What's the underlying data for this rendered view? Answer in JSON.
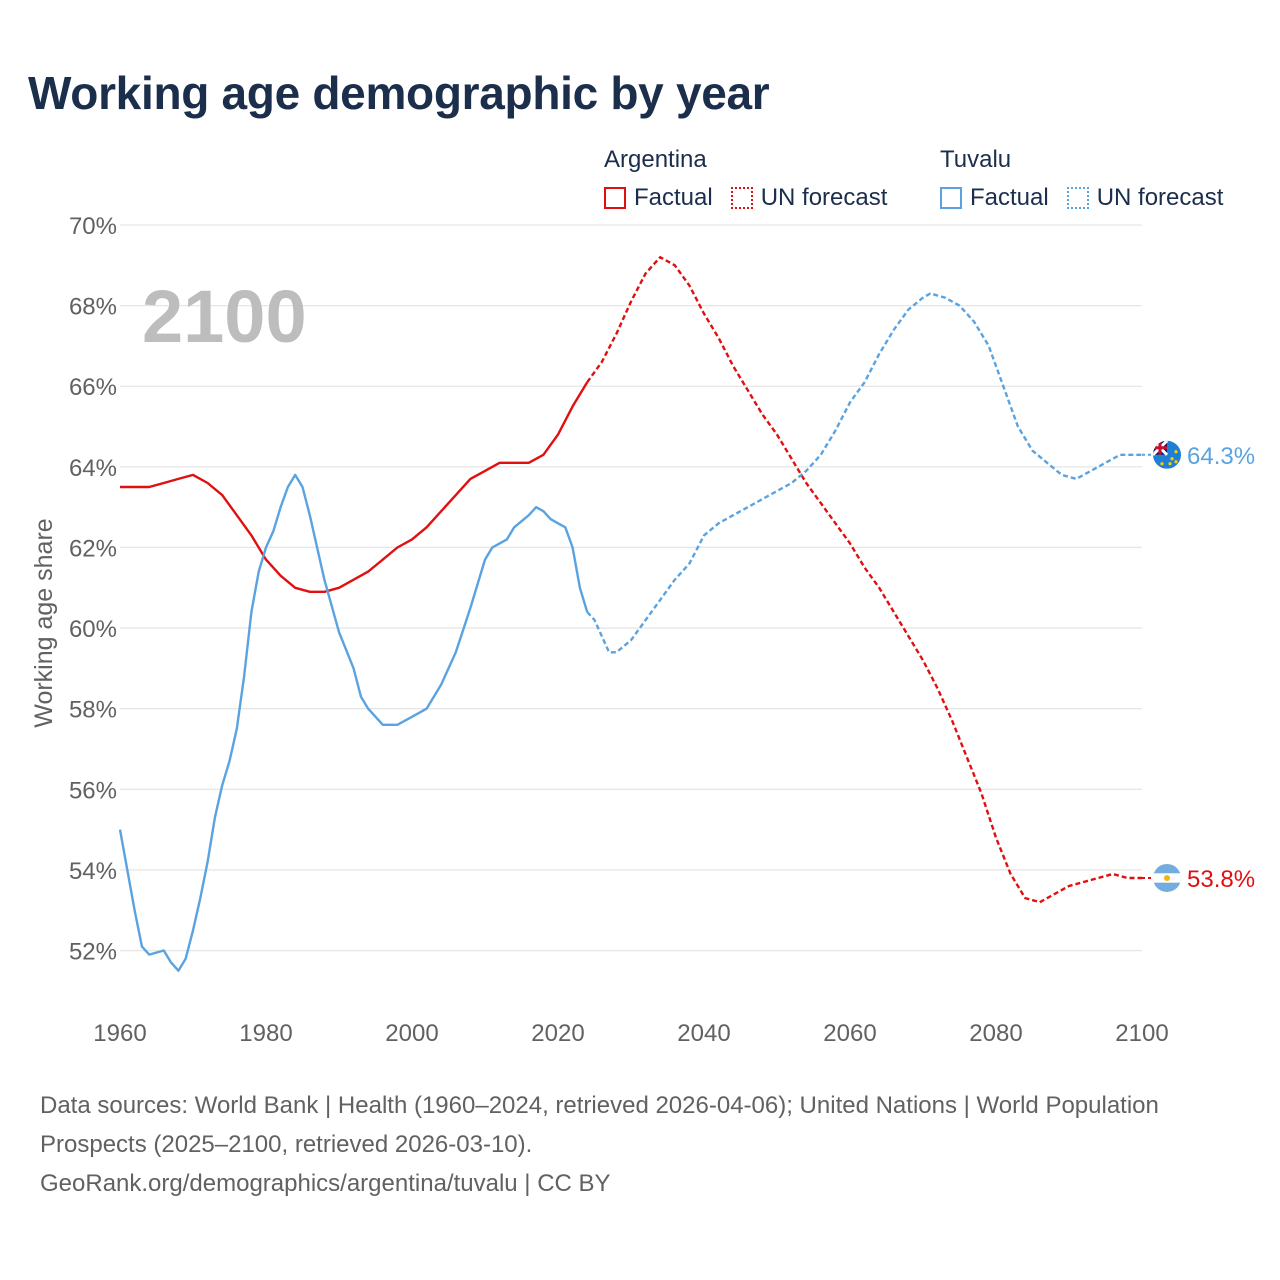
{
  "title": "Working age demographic by year",
  "legend": [
    {
      "group": "Argentina",
      "factual_label": "Factual",
      "forecast_label": "UN forecast",
      "color": "#e01010"
    },
    {
      "group": "Tuvalu",
      "factual_label": "Factual",
      "forecast_label": "UN forecast",
      "color": "#5aa3e0"
    }
  ],
  "year_watermark": "2100",
  "footer": {
    "sources": "Data sources: World Bank | Health (1960–2024, retrieved 2026-04-06); United Nations | World Population Prospects (2025–2100, retrieved 2026-03-10).",
    "credit": "GeoRank.org/demographics/argentina/tuvalu | CC BY"
  },
  "chart_data": {
    "type": "line",
    "title": "Working age demographic by year",
    "xlabel": "",
    "ylabel": "Working age share",
    "xlim": [
      1960,
      2100
    ],
    "ylim": [
      50.5,
      70
    ],
    "x_ticks": [
      1960,
      1980,
      2000,
      2020,
      2040,
      2060,
      2080,
      2100
    ],
    "x_tick_labels": [
      "1960",
      "1980",
      "2000",
      "2020",
      "2040",
      "2060",
      "2080",
      "2100"
    ],
    "y_ticks": [
      52,
      54,
      56,
      58,
      60,
      62,
      64,
      66,
      68,
      70
    ],
    "y_tick_labels": [
      "52%",
      "54%",
      "56%",
      "58%",
      "60%",
      "62%",
      "64%",
      "66%",
      "68%",
      "70%"
    ],
    "grid": true,
    "factual_end_year": 2024,
    "series": [
      {
        "name": "Argentina",
        "color": "#e01010",
        "end_label": "53.8%",
        "flag": "argentina-flag",
        "points": [
          [
            1960,
            63.5
          ],
          [
            1964,
            63.5
          ],
          [
            1966,
            63.6
          ],
          [
            1968,
            63.7
          ],
          [
            1970,
            63.8
          ],
          [
            1972,
            63.6
          ],
          [
            1974,
            63.3
          ],
          [
            1976,
            62.8
          ],
          [
            1978,
            62.3
          ],
          [
            1980,
            61.7
          ],
          [
            1982,
            61.3
          ],
          [
            1984,
            61.0
          ],
          [
            1986,
            60.9
          ],
          [
            1988,
            60.9
          ],
          [
            1990,
            61.0
          ],
          [
            1992,
            61.2
          ],
          [
            1994,
            61.4
          ],
          [
            1996,
            61.7
          ],
          [
            1998,
            62.0
          ],
          [
            2000,
            62.2
          ],
          [
            2002,
            62.5
          ],
          [
            2004,
            62.9
          ],
          [
            2006,
            63.3
          ],
          [
            2008,
            63.7
          ],
          [
            2010,
            63.9
          ],
          [
            2012,
            64.1
          ],
          [
            2014,
            64.1
          ],
          [
            2016,
            64.1
          ],
          [
            2018,
            64.3
          ],
          [
            2020,
            64.8
          ],
          [
            2022,
            65.5
          ],
          [
            2024,
            66.1
          ],
          [
            2026,
            66.6
          ],
          [
            2028,
            67.3
          ],
          [
            2030,
            68.1
          ],
          [
            2032,
            68.8
          ],
          [
            2034,
            69.2
          ],
          [
            2036,
            69.0
          ],
          [
            2038,
            68.5
          ],
          [
            2040,
            67.8
          ],
          [
            2042,
            67.2
          ],
          [
            2044,
            66.5
          ],
          [
            2046,
            65.9
          ],
          [
            2048,
            65.3
          ],
          [
            2050,
            64.8
          ],
          [
            2052,
            64.2
          ],
          [
            2054,
            63.6
          ],
          [
            2056,
            63.1
          ],
          [
            2058,
            62.6
          ],
          [
            2060,
            62.1
          ],
          [
            2062,
            61.5
          ],
          [
            2064,
            61.0
          ],
          [
            2066,
            60.4
          ],
          [
            2068,
            59.8
          ],
          [
            2070,
            59.2
          ],
          [
            2072,
            58.5
          ],
          [
            2074,
            57.7
          ],
          [
            2076,
            56.8
          ],
          [
            2078,
            55.9
          ],
          [
            2080,
            54.8
          ],
          [
            2082,
            53.9
          ],
          [
            2084,
            53.3
          ],
          [
            2086,
            53.2
          ],
          [
            2088,
            53.4
          ],
          [
            2090,
            53.6
          ],
          [
            2092,
            53.7
          ],
          [
            2094,
            53.8
          ],
          [
            2096,
            53.9
          ],
          [
            2098,
            53.8
          ],
          [
            2100,
            53.8
          ]
        ]
      },
      {
        "name": "Tuvalu",
        "color": "#5aa3e0",
        "end_label": "64.3%",
        "flag": "tuvalu-flag",
        "points": [
          [
            1960,
            55.0
          ],
          [
            1962,
            53.0
          ],
          [
            1963,
            52.1
          ],
          [
            1964,
            51.9
          ],
          [
            1966,
            52.0
          ],
          [
            1967,
            51.7
          ],
          [
            1968,
            51.5
          ],
          [
            1969,
            51.8
          ],
          [
            1970,
            52.5
          ],
          [
            1971,
            53.3
          ],
          [
            1972,
            54.2
          ],
          [
            1973,
            55.3
          ],
          [
            1974,
            56.1
          ],
          [
            1975,
            56.7
          ],
          [
            1976,
            57.5
          ],
          [
            1977,
            58.8
          ],
          [
            1978,
            60.4
          ],
          [
            1979,
            61.4
          ],
          [
            1980,
            62.0
          ],
          [
            1981,
            62.4
          ],
          [
            1982,
            63.0
          ],
          [
            1983,
            63.5
          ],
          [
            1984,
            63.8
          ],
          [
            1985,
            63.5
          ],
          [
            1986,
            62.8
          ],
          [
            1987,
            62.0
          ],
          [
            1988,
            61.2
          ],
          [
            1990,
            59.9
          ],
          [
            1992,
            59.0
          ],
          [
            1993,
            58.3
          ],
          [
            1994,
            58.0
          ],
          [
            1996,
            57.6
          ],
          [
            1998,
            57.6
          ],
          [
            1999,
            57.7
          ],
          [
            2000,
            57.8
          ],
          [
            2002,
            58.0
          ],
          [
            2004,
            58.6
          ],
          [
            2006,
            59.4
          ],
          [
            2008,
            60.5
          ],
          [
            2010,
            61.7
          ],
          [
            2011,
            62.0
          ],
          [
            2012,
            62.1
          ],
          [
            2013,
            62.2
          ],
          [
            2014,
            62.5
          ],
          [
            2016,
            62.8
          ],
          [
            2017,
            63.0
          ],
          [
            2018,
            62.9
          ],
          [
            2019,
            62.7
          ],
          [
            2020,
            62.6
          ],
          [
            2021,
            62.5
          ],
          [
            2022,
            62.0
          ],
          [
            2023,
            61.0
          ],
          [
            2024,
            60.4
          ],
          [
            2025,
            60.2
          ],
          [
            2026,
            59.8
          ],
          [
            2027,
            59.4
          ],
          [
            2028,
            59.4
          ],
          [
            2030,
            59.7
          ],
          [
            2032,
            60.2
          ],
          [
            2034,
            60.7
          ],
          [
            2036,
            61.2
          ],
          [
            2038,
            61.6
          ],
          [
            2040,
            62.3
          ],
          [
            2042,
            62.6
          ],
          [
            2044,
            62.8
          ],
          [
            2046,
            63.0
          ],
          [
            2048,
            63.2
          ],
          [
            2050,
            63.4
          ],
          [
            2052,
            63.6
          ],
          [
            2054,
            63.9
          ],
          [
            2056,
            64.3
          ],
          [
            2058,
            64.9
          ],
          [
            2060,
            65.6
          ],
          [
            2062,
            66.1
          ],
          [
            2064,
            66.8
          ],
          [
            2066,
            67.4
          ],
          [
            2068,
            67.9
          ],
          [
            2070,
            68.2
          ],
          [
            2071,
            68.3
          ],
          [
            2073,
            68.2
          ],
          [
            2075,
            68.0
          ],
          [
            2077,
            67.6
          ],
          [
            2079,
            67.0
          ],
          [
            2081,
            66.0
          ],
          [
            2083,
            65.0
          ],
          [
            2085,
            64.4
          ],
          [
            2087,
            64.1
          ],
          [
            2089,
            63.8
          ],
          [
            2091,
            63.7
          ],
          [
            2093,
            63.9
          ],
          [
            2095,
            64.1
          ],
          [
            2097,
            64.3
          ],
          [
            2100,
            64.3
          ]
        ]
      }
    ]
  }
}
